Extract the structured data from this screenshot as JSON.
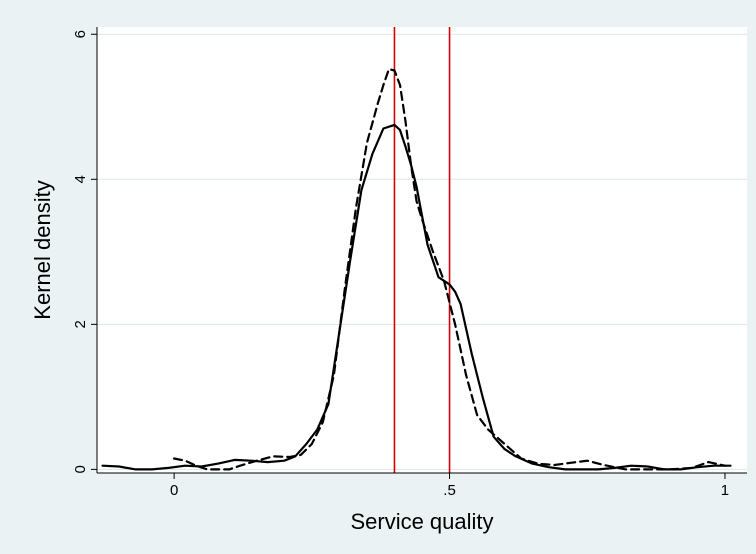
{
  "chart_data": {
    "type": "line",
    "title": "",
    "xlabel": "Service quality",
    "ylabel": "Kernel density",
    "xlim": [
      -0.14,
      1.04
    ],
    "ylim": [
      -0.05,
      6.1
    ],
    "x_ticks": [
      {
        "value": 0,
        "label": "0"
      },
      {
        "value": 0.5,
        "label": ".5"
      },
      {
        "value": 1,
        "label": "1"
      }
    ],
    "y_ticks": [
      {
        "value": 0,
        "label": "0"
      },
      {
        "value": 2,
        "label": "2"
      },
      {
        "value": 4,
        "label": "4"
      },
      {
        "value": 6,
        "label": "6"
      }
    ],
    "grid": "horizontal",
    "legend": "none",
    "reference_lines": [
      {
        "axis": "x",
        "value": 0.4,
        "color": "#d40000"
      },
      {
        "axis": "x",
        "value": 0.5,
        "color": "#d40000"
      }
    ],
    "colors": {
      "background": "#eaf2f3",
      "plot_background": "#ffffff",
      "grid": "#dde6ea",
      "series": "#000000",
      "reference": "#d40000"
    },
    "series": [
      {
        "style": "solid",
        "x": [
          -0.13,
          -0.1,
          -0.07,
          -0.04,
          -0.01,
          0.02,
          0.05,
          0.08,
          0.11,
          0.14,
          0.17,
          0.2,
          0.22,
          0.24,
          0.26,
          0.28,
          0.3,
          0.32,
          0.34,
          0.36,
          0.38,
          0.4,
          0.41,
          0.42,
          0.43,
          0.44,
          0.46,
          0.48,
          0.5,
          0.51,
          0.52,
          0.54,
          0.56,
          0.58,
          0.6,
          0.62,
          0.65,
          0.68,
          0.71,
          0.74,
          0.77,
          0.8,
          0.83,
          0.86,
          0.89,
          0.92,
          0.95,
          0.98,
          1.01
        ],
        "y": [
          0.05,
          0.04,
          0.0,
          0.0,
          0.02,
          0.05,
          0.04,
          0.08,
          0.13,
          0.12,
          0.1,
          0.12,
          0.18,
          0.35,
          0.55,
          0.9,
          1.9,
          2.9,
          3.85,
          4.35,
          4.7,
          4.75,
          4.68,
          4.45,
          4.2,
          3.9,
          3.1,
          2.65,
          2.55,
          2.45,
          2.28,
          1.6,
          1.0,
          0.45,
          0.28,
          0.18,
          0.08,
          0.03,
          0.0,
          0.0,
          0.0,
          0.02,
          0.05,
          0.04,
          0.0,
          0.0,
          0.03,
          0.05,
          0.05
        ]
      },
      {
        "style": "dashed",
        "x": [
          0.0,
          0.02,
          0.04,
          0.06,
          0.08,
          0.1,
          0.12,
          0.15,
          0.18,
          0.21,
          0.23,
          0.25,
          0.27,
          0.29,
          0.31,
          0.33,
          0.35,
          0.37,
          0.38,
          0.39,
          0.4,
          0.41,
          0.42,
          0.43,
          0.44,
          0.45,
          0.47,
          0.49,
          0.51,
          0.53,
          0.55,
          0.57,
          0.6,
          0.63,
          0.66,
          0.69,
          0.72,
          0.75,
          0.78,
          0.82,
          0.86,
          0.9,
          0.94,
          0.97,
          1.0
        ],
        "y": [
          0.15,
          0.12,
          0.05,
          0.0,
          0.0,
          0.0,
          0.05,
          0.12,
          0.18,
          0.17,
          0.2,
          0.35,
          0.65,
          1.3,
          2.5,
          3.6,
          4.5,
          5.05,
          5.3,
          5.52,
          5.5,
          5.3,
          4.8,
          4.2,
          3.7,
          3.45,
          3.0,
          2.6,
          2.0,
          1.3,
          0.75,
          0.55,
          0.35,
          0.15,
          0.08,
          0.06,
          0.09,
          0.12,
          0.06,
          0.0,
          0.0,
          0.0,
          0.02,
          0.1,
          0.05
        ]
      }
    ]
  }
}
